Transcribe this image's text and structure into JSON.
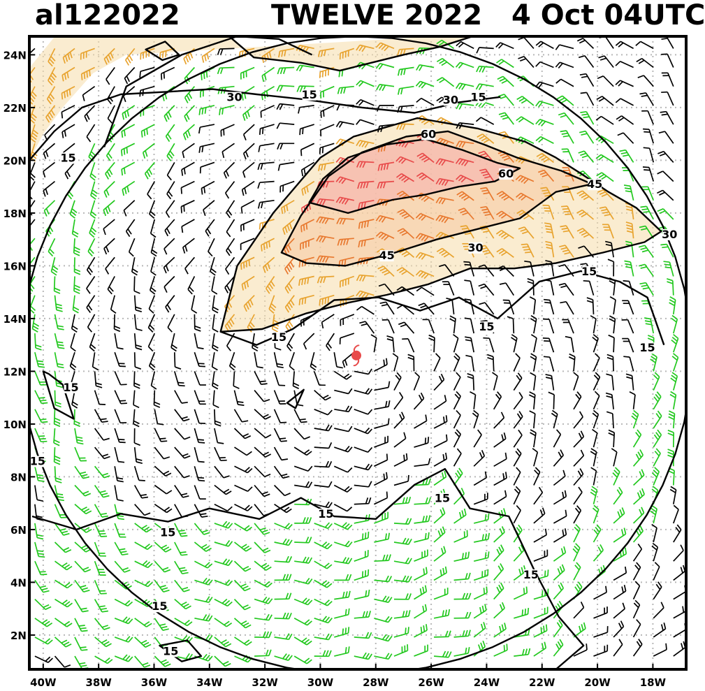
{
  "header": {
    "storm_id": "al122022",
    "storm_title": "TWELVE 2022   4 Oct 04UTC"
  },
  "chart_data": {
    "type": "wind-barb-map",
    "title": "al122022   TWELVE 2022   4 Oct 04UTC",
    "x_axis": {
      "range": [
        -40.5,
        -16.8
      ],
      "tick_labels": [
        "40W",
        "38W",
        "36W",
        "34W",
        "32W",
        "30W",
        "28W",
        "26W",
        "24W",
        "22W",
        "20W",
        "18W"
      ],
      "tick_values": [
        -40,
        -38,
        -36,
        -34,
        -32,
        -30,
        -28,
        -26,
        -24,
        -22,
        -20,
        -18
      ]
    },
    "y_axis": {
      "range": [
        0.7,
        24.7
      ],
      "tick_labels": [
        "2N",
        "4N",
        "6N",
        "8N",
        "10N",
        "12N",
        "14N",
        "16N",
        "18N",
        "20N",
        "22N",
        "24N"
      ],
      "tick_values": [
        2,
        4,
        6,
        8,
        10,
        12,
        14,
        16,
        18,
        20,
        22,
        24
      ]
    },
    "grid": true,
    "storm_center": {
      "lon": -28.7,
      "lat": 12.6,
      "color": "#e84a4a"
    },
    "wind_speed_contours_kt": [
      15,
      30,
      45,
      60
    ],
    "contour_labels": [
      {
        "text": "15",
        "lon": -39.1,
        "lat": 20.0
      },
      {
        "text": "30",
        "lon": -33.1,
        "lat": 22.3
      },
      {
        "text": "15",
        "lon": -30.4,
        "lat": 22.4
      },
      {
        "text": "30",
        "lon": -25.3,
        "lat": 22.2
      },
      {
        "text": "15",
        "lon": -24.3,
        "lat": 22.3
      },
      {
        "text": "60",
        "lon": -26.1,
        "lat": 20.9
      },
      {
        "text": "60",
        "lon": -23.3,
        "lat": 19.4
      },
      {
        "text": "45",
        "lon": -20.1,
        "lat": 19.0
      },
      {
        "text": "30",
        "lon": -17.4,
        "lat": 17.1
      },
      {
        "text": "45",
        "lon": -27.6,
        "lat": 16.3
      },
      {
        "text": "30",
        "lon": -24.4,
        "lat": 16.6
      },
      {
        "text": "15",
        "lon": -20.3,
        "lat": 15.7
      },
      {
        "text": "15",
        "lon": -24.0,
        "lat": 13.6
      },
      {
        "text": "15",
        "lon": -18.2,
        "lat": 12.8
      },
      {
        "text": "15",
        "lon": -31.5,
        "lat": 13.2
      },
      {
        "text": "15",
        "lon": -39.0,
        "lat": 11.3
      },
      {
        "text": "15",
        "lon": -40.2,
        "lat": 8.5
      },
      {
        "text": "15",
        "lon": -25.6,
        "lat": 7.1
      },
      {
        "text": "15",
        "lon": -29.8,
        "lat": 6.5
      },
      {
        "text": "15",
        "lon": -35.5,
        "lat": 5.8
      },
      {
        "text": "15",
        "lon": -22.4,
        "lat": 4.2
      },
      {
        "text": "15",
        "lon": -35.8,
        "lat": 3.0
      },
      {
        "text": "15",
        "lon": -35.4,
        "lat": 1.3
      }
    ],
    "barb_colors": {
      "under_15kt": "#000000",
      "15_to_30kt": "#22c81e",
      "30_to_45kt": "#e8a32e",
      "45_to_60kt": "#e8782e",
      "over_60kt": "#e84a4a"
    }
  }
}
